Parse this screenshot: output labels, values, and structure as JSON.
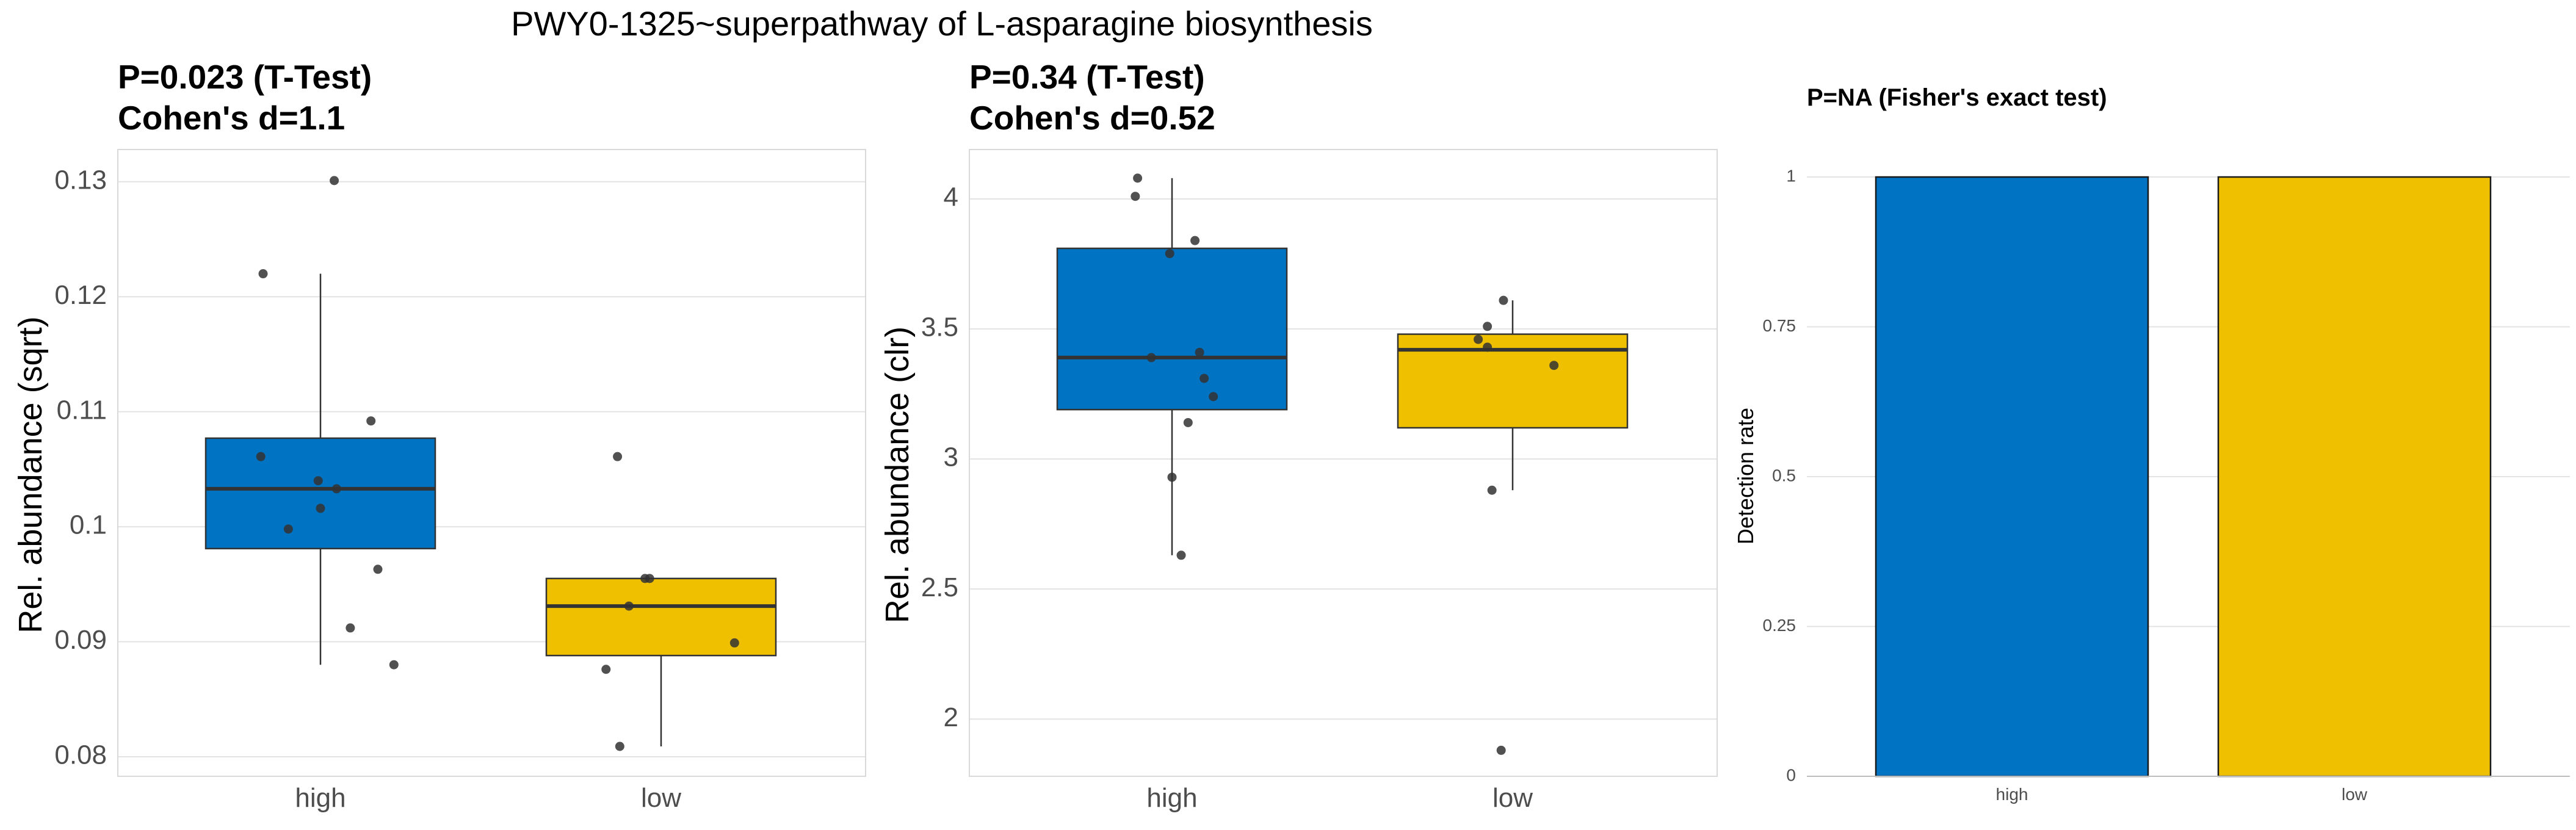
{
  "suptitle": "PWY0-1325~superpathway of L-asparagine biosynthesis",
  "colors": {
    "high": "#0073C2",
    "low": "#EFC000",
    "point": "#333333",
    "grid": "#e3e3e3",
    "border": "#d9d9d9"
  },
  "chart_data": [
    {
      "type": "box",
      "title_line1": "P=0.023 (T-Test)",
      "title_line2": "Cohen's d=1.1",
      "ylabel": "Rel. abundance (sqrt)",
      "ylim": [
        0.0783,
        0.1328
      ],
      "yticks": [
        0.08,
        0.09,
        0.1,
        0.11,
        0.12,
        0.13
      ],
      "ytick_labels": [
        "0.08",
        "0.09",
        "0.1",
        "0.11",
        "0.12",
        "0.13"
      ],
      "categories": [
        "high",
        "low"
      ],
      "boxes": [
        {
          "group": "high",
          "q1": 0.0981,
          "median": 0.1033,
          "q3": 0.1077,
          "whisker_low": 0.088,
          "whisker_high": 0.122
        },
        {
          "group": "low",
          "q1": 0.0888,
          "median": 0.0931,
          "q3": 0.0955,
          "whisker_low": 0.0809,
          "whisker_high": 0.0955
        }
      ],
      "points": [
        {
          "group": "high",
          "jitter": 0.06,
          "y": 0.1301
        },
        {
          "group": "high",
          "jitter": -0.25,
          "y": 0.122
        },
        {
          "group": "high",
          "jitter": 0.22,
          "y": 0.1092
        },
        {
          "group": "high",
          "jitter": -0.26,
          "y": 0.1061
        },
        {
          "group": "high",
          "jitter": -0.01,
          "y": 0.104
        },
        {
          "group": "high",
          "jitter": 0.07,
          "y": 0.1033
        },
        {
          "group": "high",
          "jitter": 0.0,
          "y": 0.1016
        },
        {
          "group": "high",
          "jitter": -0.14,
          "y": 0.0998
        },
        {
          "group": "high",
          "jitter": 0.25,
          "y": 0.0963
        },
        {
          "group": "high",
          "jitter": 0.13,
          "y": 0.0912
        },
        {
          "group": "high",
          "jitter": 0.32,
          "y": 0.088
        },
        {
          "group": "low",
          "jitter": -0.19,
          "y": 0.1061
        },
        {
          "group": "low",
          "jitter": -0.07,
          "y": 0.0955
        },
        {
          "group": "low",
          "jitter": -0.05,
          "y": 0.0955
        },
        {
          "group": "low",
          "jitter": -0.14,
          "y": 0.0931
        },
        {
          "group": "low",
          "jitter": 0.32,
          "y": 0.0899
        },
        {
          "group": "low",
          "jitter": -0.24,
          "y": 0.0876
        },
        {
          "group": "low",
          "jitter": -0.18,
          "y": 0.0809
        }
      ]
    },
    {
      "type": "box",
      "title_line1": "P=0.34 (T-Test)",
      "title_line2": "Cohen's d=0.52",
      "ylabel": "Rel. abundance (clr)",
      "ylim": [
        1.78,
        4.19
      ],
      "yticks": [
        2,
        2.5,
        3,
        3.5,
        4
      ],
      "ytick_labels": [
        "2",
        "2.5",
        "3",
        "3.5",
        "4"
      ],
      "categories": [
        "high",
        "low"
      ],
      "boxes": [
        {
          "group": "high",
          "q1": 3.19,
          "median": 3.39,
          "q3": 3.81,
          "whisker_low": 2.63,
          "whisker_high": 4.08
        },
        {
          "group": "low",
          "q1": 3.12,
          "median": 3.42,
          "q3": 3.48,
          "whisker_low": 2.88,
          "whisker_high": 3.61
        }
      ],
      "points": [
        {
          "group": "high",
          "jitter": -0.15,
          "y": 4.08
        },
        {
          "group": "high",
          "jitter": -0.16,
          "y": 4.01
        },
        {
          "group": "high",
          "jitter": 0.1,
          "y": 3.84
        },
        {
          "group": "high",
          "jitter": -0.01,
          "y": 3.79
        },
        {
          "group": "high",
          "jitter": 0.12,
          "y": 3.41
        },
        {
          "group": "high",
          "jitter": -0.09,
          "y": 3.39
        },
        {
          "group": "high",
          "jitter": 0.14,
          "y": 3.31
        },
        {
          "group": "high",
          "jitter": 0.18,
          "y": 3.24
        },
        {
          "group": "high",
          "jitter": 0.07,
          "y": 3.14
        },
        {
          "group": "high",
          "jitter": 0.0,
          "y": 2.93
        },
        {
          "group": "high",
          "jitter": 0.04,
          "y": 2.63
        },
        {
          "group": "low",
          "jitter": -0.04,
          "y": 3.61
        },
        {
          "group": "low",
          "jitter": -0.11,
          "y": 3.51
        },
        {
          "group": "low",
          "jitter": -0.15,
          "y": 3.46
        },
        {
          "group": "low",
          "jitter": -0.11,
          "y": 3.43
        },
        {
          "group": "low",
          "jitter": 0.18,
          "y": 3.36
        },
        {
          "group": "low",
          "jitter": -0.09,
          "y": 2.88
        },
        {
          "group": "low",
          "jitter": -0.05,
          "y": 1.88
        }
      ]
    },
    {
      "type": "bar",
      "title": "P=NA (Fisher's exact test)",
      "ylabel": "Detection rate",
      "ylim": [
        0,
        1
      ],
      "yticks": [
        0,
        0.25,
        0.5,
        0.75,
        1
      ],
      "ytick_labels": [
        "0",
        "0.25",
        "0.5",
        "0.75",
        "1"
      ],
      "categories": [
        "high",
        "low"
      ],
      "values": [
        1,
        1
      ]
    }
  ]
}
